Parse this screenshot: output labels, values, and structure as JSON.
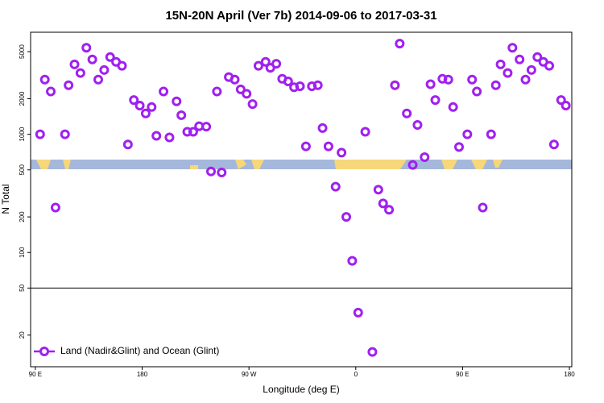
{
  "chart_data": {
    "type": "scatter",
    "title": "15N-20N April (Ver 7b)   2014-09-06 to 2017-03-31",
    "x_label": "Longitude (deg E)",
    "y_label": "N Total",
    "log_y": true,
    "reference_line": 50,
    "legend_position": "bottom-left",
    "xlim": [
      86,
      542
    ],
    "ylim": [
      10.8,
      7300
    ],
    "xticks": [
      {
        "value": 90,
        "label": "90 E"
      },
      {
        "value": 180,
        "label": "180"
      },
      {
        "value": 270,
        "label": "90 W"
      },
      {
        "value": 360,
        "label": "0"
      },
      {
        "value": 450,
        "label": "90 E"
      },
      {
        "value": 540,
        "label": "180"
      }
    ],
    "yticks": [
      20,
      50,
      100,
      200,
      500,
      1000,
      2000,
      5000
    ],
    "series": [
      {
        "name": "Land (Nadir&Glint) and Ocean (Glint)",
        "color": "#a020f0",
        "x": [
          94,
          98,
          103,
          107,
          115,
          118,
          123,
          128,
          133,
          138,
          143,
          148,
          153,
          158,
          163,
          168,
          173,
          178,
          183,
          188,
          192,
          198,
          203,
          209,
          213,
          218,
          223,
          228,
          234,
          238,
          243,
          247,
          253,
          258,
          263,
          268,
          273,
          278,
          284,
          288,
          293,
          298,
          303,
          308,
          313,
          318,
          323,
          328,
          332,
          337,
          343,
          348,
          352,
          357,
          362,
          368,
          374,
          379,
          383,
          388,
          393,
          397,
          403,
          408,
          412,
          418,
          423,
          427,
          433,
          438,
          442,
          447,
          454,
          458,
          462,
          467,
          474,
          478,
          482,
          488,
          492,
          498,
          503,
          508,
          513,
          518,
          523,
          527,
          533,
          537
        ],
        "values": [
          1000,
          2900,
          2300,
          240,
          1000,
          2600,
          3900,
          3300,
          5400,
          4300,
          2900,
          3500,
          4500,
          4100,
          3800,
          820,
          1950,
          1750,
          1500,
          1700,
          970,
          2300,
          940,
          1900,
          1450,
          1050,
          1050,
          1170,
          1160,
          485,
          2300,
          475,
          3050,
          2900,
          2400,
          2200,
          1800,
          3800,
          4100,
          3650,
          3950,
          2950,
          2800,
          2500,
          2550,
          790,
          2550,
          2600,
          1130,
          790,
          360,
          700,
          200,
          85,
          31,
          1050,
          14.4,
          340,
          260,
          230,
          2600,
          5850,
          1500,
          550,
          1200,
          640,
          2650,
          1950,
          2950,
          2900,
          1700,
          780,
          1000,
          2900,
          2300,
          240,
          1000,
          2600,
          3900,
          3300,
          5400,
          4300,
          2900,
          3500,
          4500,
          4100,
          3800,
          820,
          1950,
          1750
        ]
      }
    ]
  }
}
